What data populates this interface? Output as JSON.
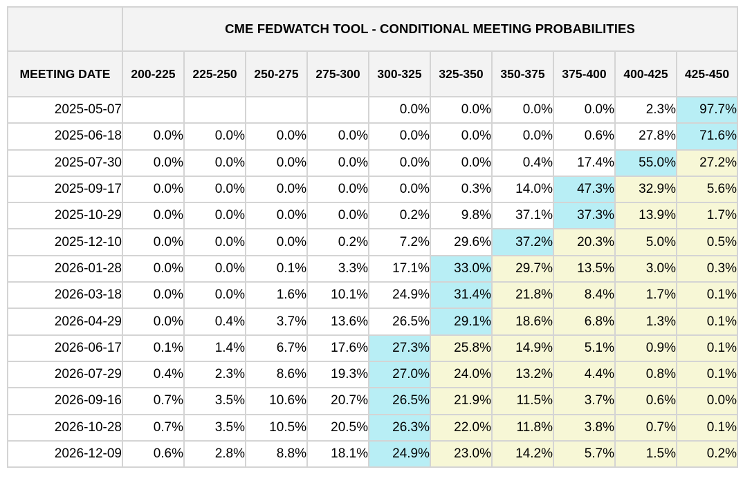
{
  "title": "CME FEDWATCH TOOL - CONDITIONAL MEETING PROBABILITIES",
  "date_header": "MEETING DATE",
  "columns": [
    "200-225",
    "225-250",
    "250-275",
    "275-300",
    "300-325",
    "325-350",
    "350-375",
    "375-400",
    "400-425",
    "425-450"
  ],
  "colors": {
    "max_highlight": "#b8eef5",
    "above_max_highlight": "#f7f7d6",
    "header_bg": "#f3f3f3",
    "grid": "#d4d4d4"
  },
  "rows": [
    {
      "date": "2025-05-07",
      "values": [
        "",
        "",
        "",
        "",
        "0.0%",
        "0.0%",
        "0.0%",
        "0.0%",
        "2.3%",
        "97.7%"
      ]
    },
    {
      "date": "2025-06-18",
      "values": [
        "0.0%",
        "0.0%",
        "0.0%",
        "0.0%",
        "0.0%",
        "0.0%",
        "0.0%",
        "0.6%",
        "27.8%",
        "71.6%"
      ]
    },
    {
      "date": "2025-07-30",
      "values": [
        "0.0%",
        "0.0%",
        "0.0%",
        "0.0%",
        "0.0%",
        "0.0%",
        "0.4%",
        "17.4%",
        "55.0%",
        "27.2%"
      ]
    },
    {
      "date": "2025-09-17",
      "values": [
        "0.0%",
        "0.0%",
        "0.0%",
        "0.0%",
        "0.0%",
        "0.3%",
        "14.0%",
        "47.3%",
        "32.9%",
        "5.6%"
      ]
    },
    {
      "date": "2025-10-29",
      "values": [
        "0.0%",
        "0.0%",
        "0.0%",
        "0.0%",
        "0.2%",
        "9.8%",
        "37.1%",
        "37.3%",
        "13.9%",
        "1.7%"
      ]
    },
    {
      "date": "2025-12-10",
      "values": [
        "0.0%",
        "0.0%",
        "0.0%",
        "0.2%",
        "7.2%",
        "29.6%",
        "37.2%",
        "20.3%",
        "5.0%",
        "0.5%"
      ]
    },
    {
      "date": "2026-01-28",
      "values": [
        "0.0%",
        "0.0%",
        "0.1%",
        "3.3%",
        "17.1%",
        "33.0%",
        "29.7%",
        "13.5%",
        "3.0%",
        "0.3%"
      ]
    },
    {
      "date": "2026-03-18",
      "values": [
        "0.0%",
        "0.0%",
        "1.6%",
        "10.1%",
        "24.9%",
        "31.4%",
        "21.8%",
        "8.4%",
        "1.7%",
        "0.1%"
      ]
    },
    {
      "date": "2026-04-29",
      "values": [
        "0.0%",
        "0.4%",
        "3.7%",
        "13.6%",
        "26.5%",
        "29.1%",
        "18.6%",
        "6.8%",
        "1.3%",
        "0.1%"
      ]
    },
    {
      "date": "2026-06-17",
      "values": [
        "0.1%",
        "1.4%",
        "6.7%",
        "17.6%",
        "27.3%",
        "25.8%",
        "14.9%",
        "5.1%",
        "0.9%",
        "0.1%"
      ]
    },
    {
      "date": "2026-07-29",
      "values": [
        "0.4%",
        "2.3%",
        "8.6%",
        "19.3%",
        "27.0%",
        "24.0%",
        "13.2%",
        "4.4%",
        "0.8%",
        "0.1%"
      ]
    },
    {
      "date": "2026-09-16",
      "values": [
        "0.7%",
        "3.5%",
        "10.6%",
        "20.7%",
        "26.5%",
        "21.9%",
        "11.5%",
        "3.7%",
        "0.6%",
        "0.0%"
      ]
    },
    {
      "date": "2026-10-28",
      "values": [
        "0.7%",
        "3.5%",
        "10.5%",
        "20.5%",
        "26.3%",
        "22.0%",
        "11.8%",
        "3.8%",
        "0.7%",
        "0.1%"
      ]
    },
    {
      "date": "2026-12-09",
      "values": [
        "0.6%",
        "2.8%",
        "8.8%",
        "18.1%",
        "24.9%",
        "23.0%",
        "14.2%",
        "5.7%",
        "1.5%",
        "0.2%"
      ]
    }
  ]
}
